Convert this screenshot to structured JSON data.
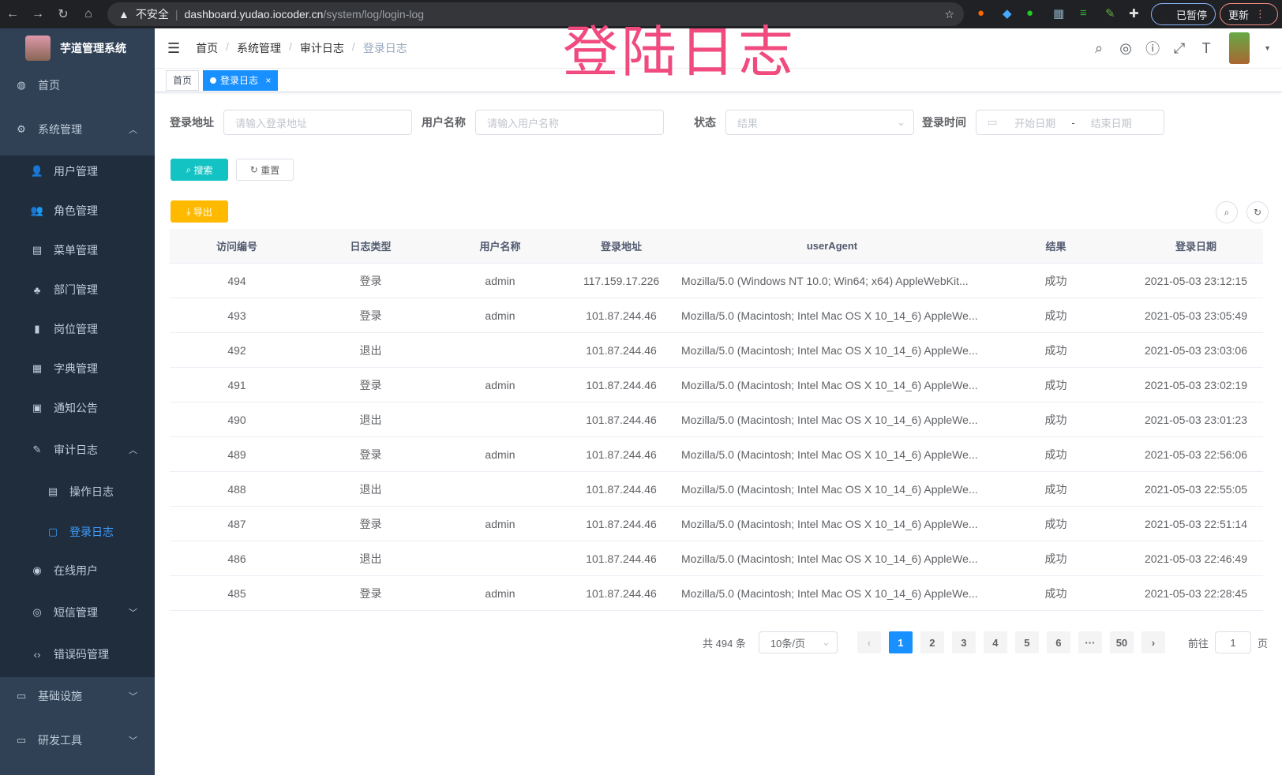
{
  "browser": {
    "security": "不安全",
    "url_host": "dashboard.yudao.iocoder.cn",
    "url_path": "/system/log/login-log",
    "paused": "已暂停",
    "update": "更新"
  },
  "overlay_title": "登陆日志",
  "sidebar": {
    "app_name": "芋道管理系统",
    "items": [
      {
        "label": "首页",
        "icon": "dashboard-icon"
      },
      {
        "label": "系统管理",
        "icon": "gear-icon"
      },
      {
        "label": "用户管理",
        "icon": "user-icon"
      },
      {
        "label": "角色管理",
        "icon": "peoples-icon"
      },
      {
        "label": "菜单管理",
        "icon": "tree-table-icon"
      },
      {
        "label": "部门管理",
        "icon": "tree-icon"
      },
      {
        "label": "岗位管理",
        "icon": "post-icon"
      },
      {
        "label": "字典管理",
        "icon": "dict-icon"
      },
      {
        "label": "通知公告",
        "icon": "message-icon"
      },
      {
        "label": "审计日志",
        "icon": "log-icon"
      },
      {
        "label": "操作日志",
        "icon": "form-icon"
      },
      {
        "label": "登录日志",
        "icon": "logininfor-icon"
      },
      {
        "label": "在线用户",
        "icon": "online-icon"
      },
      {
        "label": "短信管理",
        "icon": "validcode-icon"
      },
      {
        "label": "错误码管理",
        "icon": "code-icon"
      },
      {
        "label": "基础设施",
        "icon": "monitor-icon"
      },
      {
        "label": "研发工具",
        "icon": "tool-icon"
      }
    ]
  },
  "breadcrumb": [
    "首页",
    "系统管理",
    "审计日志",
    "登录日志"
  ],
  "tags": [
    "首页",
    "登录日志"
  ],
  "filters": {
    "address_label": "登录地址",
    "address_placeholder": "请输入登录地址",
    "user_label": "用户名称",
    "user_placeholder": "请输入用户名称",
    "status_label": "状态",
    "status_placeholder": "结果",
    "time_label": "登录时间",
    "start_placeholder": "开始日期",
    "end_placeholder": "结束日期",
    "range_sep": "-"
  },
  "buttons": {
    "search": "搜索",
    "reset": "重置",
    "export": "导出"
  },
  "table": {
    "headers": [
      "访问编号",
      "日志类型",
      "用户名称",
      "登录地址",
      "userAgent",
      "结果",
      "登录日期"
    ],
    "rows": [
      [
        "494",
        "登录",
        "admin",
        "117.159.17.226",
        "Mozilla/5.0 (Windows NT 10.0; Win64; x64) AppleWebKit...",
        "成功",
        "2021-05-03 23:12:15"
      ],
      [
        "493",
        "登录",
        "admin",
        "101.87.244.46",
        "Mozilla/5.0 (Macintosh; Intel Mac OS X 10_14_6) AppleWe...",
        "成功",
        "2021-05-03 23:05:49"
      ],
      [
        "492",
        "退出",
        "",
        "101.87.244.46",
        "Mozilla/5.0 (Macintosh; Intel Mac OS X 10_14_6) AppleWe...",
        "成功",
        "2021-05-03 23:03:06"
      ],
      [
        "491",
        "登录",
        "admin",
        "101.87.244.46",
        "Mozilla/5.0 (Macintosh; Intel Mac OS X 10_14_6) AppleWe...",
        "成功",
        "2021-05-03 23:02:19"
      ],
      [
        "490",
        "退出",
        "",
        "101.87.244.46",
        "Mozilla/5.0 (Macintosh; Intel Mac OS X 10_14_6) AppleWe...",
        "成功",
        "2021-05-03 23:01:23"
      ],
      [
        "489",
        "登录",
        "admin",
        "101.87.244.46",
        "Mozilla/5.0 (Macintosh; Intel Mac OS X 10_14_6) AppleWe...",
        "成功",
        "2021-05-03 22:56:06"
      ],
      [
        "488",
        "退出",
        "",
        "101.87.244.46",
        "Mozilla/5.0 (Macintosh; Intel Mac OS X 10_14_6) AppleWe...",
        "成功",
        "2021-05-03 22:55:05"
      ],
      [
        "487",
        "登录",
        "admin",
        "101.87.244.46",
        "Mozilla/5.0 (Macintosh; Intel Mac OS X 10_14_6) AppleWe...",
        "成功",
        "2021-05-03 22:51:14"
      ],
      [
        "486",
        "退出",
        "",
        "101.87.244.46",
        "Mozilla/5.0 (Macintosh; Intel Mac OS X 10_14_6) AppleWe...",
        "成功",
        "2021-05-03 22:46:49"
      ],
      [
        "485",
        "登录",
        "admin",
        "101.87.244.46",
        "Mozilla/5.0 (Macintosh; Intel Mac OS X 10_14_6) AppleWe...",
        "成功",
        "2021-05-03 22:28:45"
      ]
    ]
  },
  "pagination": {
    "total": "共 494 条",
    "page_size": "10条/页",
    "pages": [
      "1",
      "2",
      "3",
      "4",
      "5",
      "6",
      "···",
      "50"
    ],
    "current": "1",
    "goto_label": "前往",
    "goto_value": "1",
    "goto_suffix": "页"
  },
  "colors": {
    "sidebar": "#304156",
    "submenu": "#1f2d3d",
    "primary": "#1890ff",
    "search": "#13c2c2",
    "export": "#ffba00",
    "overlay": "#f04a7e"
  }
}
